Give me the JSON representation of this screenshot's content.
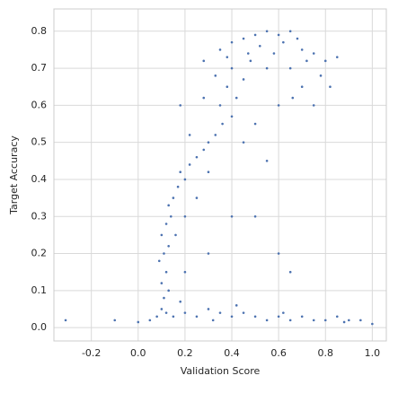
{
  "chart_data": {
    "type": "scatter",
    "color": "#4c72b0",
    "grid": true,
    "xlabel": "Validation Score",
    "ylabel": "Target Accuracy",
    "xlim": [
      -0.36,
      1.06
    ],
    "ylim": [
      -0.036,
      0.86
    ],
    "xticks": [
      -0.2,
      {
        "value": 0,
        "label": "0.0"
      },
      0.2,
      0.4,
      0.6,
      0.8,
      {
        "value": 1,
        "label": "1.0"
      }
    ],
    "yticks": [
      {
        "value": 0,
        "label": "0.0"
      },
      0.1,
      0.2,
      0.3,
      0.4,
      0.5,
      0.6,
      0.7,
      0.8
    ],
    "x": [
      0.05,
      0.08,
      0.1,
      0.12,
      0.15,
      0.2,
      0.25,
      0.3,
      0.35,
      0.4,
      0.45,
      0.5,
      0.55,
      0.6,
      0.65,
      0.7,
      0.75,
      0.8,
      0.85,
      0.9,
      0.95,
      1.0,
      0.32,
      0.62,
      0.88,
      0.42,
      0.18,
      0.11,
      0.13,
      0.1,
      0.12,
      0.09,
      0.11,
      0.13,
      0.1,
      0.12,
      0.14,
      0.13,
      0.15,
      0.17,
      0.2,
      0.18,
      0.22,
      0.25,
      0.28,
      0.3,
      0.33,
      0.36,
      0.4,
      0.35,
      0.42,
      0.38,
      0.45,
      0.4,
      0.48,
      0.2,
      0.25,
      0.3,
      0.16,
      0.22,
      0.18,
      0.28,
      0.45,
      0.5,
      0.55,
      0.4,
      0.3,
      0.2,
      0.35,
      0.4,
      0.45,
      0.5,
      0.55,
      0.6,
      0.65,
      0.38,
      0.52,
      0.58,
      0.62,
      0.68,
      0.7,
      0.72,
      0.75,
      0.8,
      0.85,
      0.78,
      0.82,
      0.7,
      0.65,
      0.75,
      0.6,
      0.33,
      0.28,
      0.47,
      0.55,
      0.66,
      -0.31,
      -0.1,
      0.0,
      0.6,
      0.65,
      0.5
    ],
    "values": [
      0.02,
      0.03,
      0.05,
      0.04,
      0.03,
      0.04,
      0.03,
      0.05,
      0.04,
      0.03,
      0.04,
      0.03,
      0.02,
      0.03,
      0.02,
      0.03,
      0.02,
      0.02,
      0.03,
      0.02,
      0.02,
      0.01,
      0.02,
      0.04,
      0.015,
      0.06,
      0.07,
      0.08,
      0.1,
      0.12,
      0.15,
      0.18,
      0.2,
      0.22,
      0.25,
      0.28,
      0.3,
      0.33,
      0.35,
      0.38,
      0.4,
      0.42,
      0.44,
      0.46,
      0.48,
      0.5,
      0.52,
      0.55,
      0.57,
      0.6,
      0.62,
      0.65,
      0.67,
      0.7,
      0.72,
      0.3,
      0.35,
      0.42,
      0.25,
      0.52,
      0.6,
      0.62,
      0.5,
      0.55,
      0.45,
      0.3,
      0.2,
      0.15,
      0.75,
      0.77,
      0.78,
      0.79,
      0.8,
      0.79,
      0.8,
      0.73,
      0.76,
      0.74,
      0.77,
      0.78,
      0.75,
      0.72,
      0.74,
      0.72,
      0.73,
      0.68,
      0.65,
      0.65,
      0.7,
      0.6,
      0.6,
      0.68,
      0.72,
      0.74,
      0.7,
      0.62,
      0.02,
      0.02,
      0.015,
      0.2,
      0.15,
      0.3
    ]
  }
}
